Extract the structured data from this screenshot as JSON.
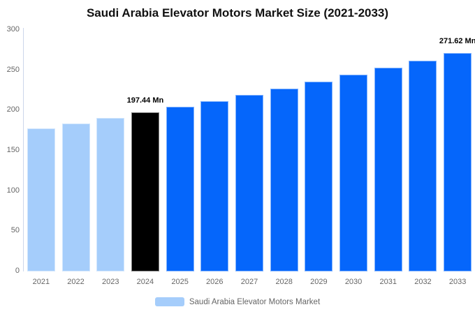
{
  "chart": {
    "title": "Saudi Arabia Elevator Motors Market Size (2021-2033)"
  },
  "legend": {
    "label": "Saudi Arabia Elevator Motors Market",
    "swatch_color": "#A5CDFB"
  },
  "chart_data": {
    "type": "bar",
    "title": "Saudi Arabia Elevator Motors Market Size (2021-2033)",
    "xlabel": "",
    "ylabel": "",
    "unit": "Mn",
    "categories": [
      "2021",
      "2022",
      "2023",
      "2024",
      "2025",
      "2026",
      "2027",
      "2028",
      "2029",
      "2030",
      "2031",
      "2032",
      "2033"
    ],
    "values": [
      177.6,
      183.9,
      190.4,
      197.44,
      204.6,
      211.9,
      219.5,
      227.4,
      235.6,
      244.1,
      252.9,
      262.0,
      271.62
    ],
    "roles": [
      "past",
      "past",
      "past",
      "current",
      "forecast",
      "forecast",
      "forecast",
      "forecast",
      "forecast",
      "forecast",
      "forecast",
      "forecast",
      "forecast"
    ],
    "colors": {
      "past": "#A5CDFB",
      "current": "#000000",
      "forecast": "#0566FB"
    },
    "annotations": [
      {
        "index": 3,
        "category": "2024",
        "text": "197.44 Mn"
      },
      {
        "index": 12,
        "category": "2033",
        "text": "271.62 Mn"
      }
    ],
    "ylim": [
      0,
      300
    ],
    "yticks": [
      0,
      50,
      100,
      150,
      200,
      250,
      300
    ],
    "grid": false,
    "legend_position": "bottom",
    "axis_line_color": "#CCD6EB",
    "tick_label_color": "#666666"
  }
}
